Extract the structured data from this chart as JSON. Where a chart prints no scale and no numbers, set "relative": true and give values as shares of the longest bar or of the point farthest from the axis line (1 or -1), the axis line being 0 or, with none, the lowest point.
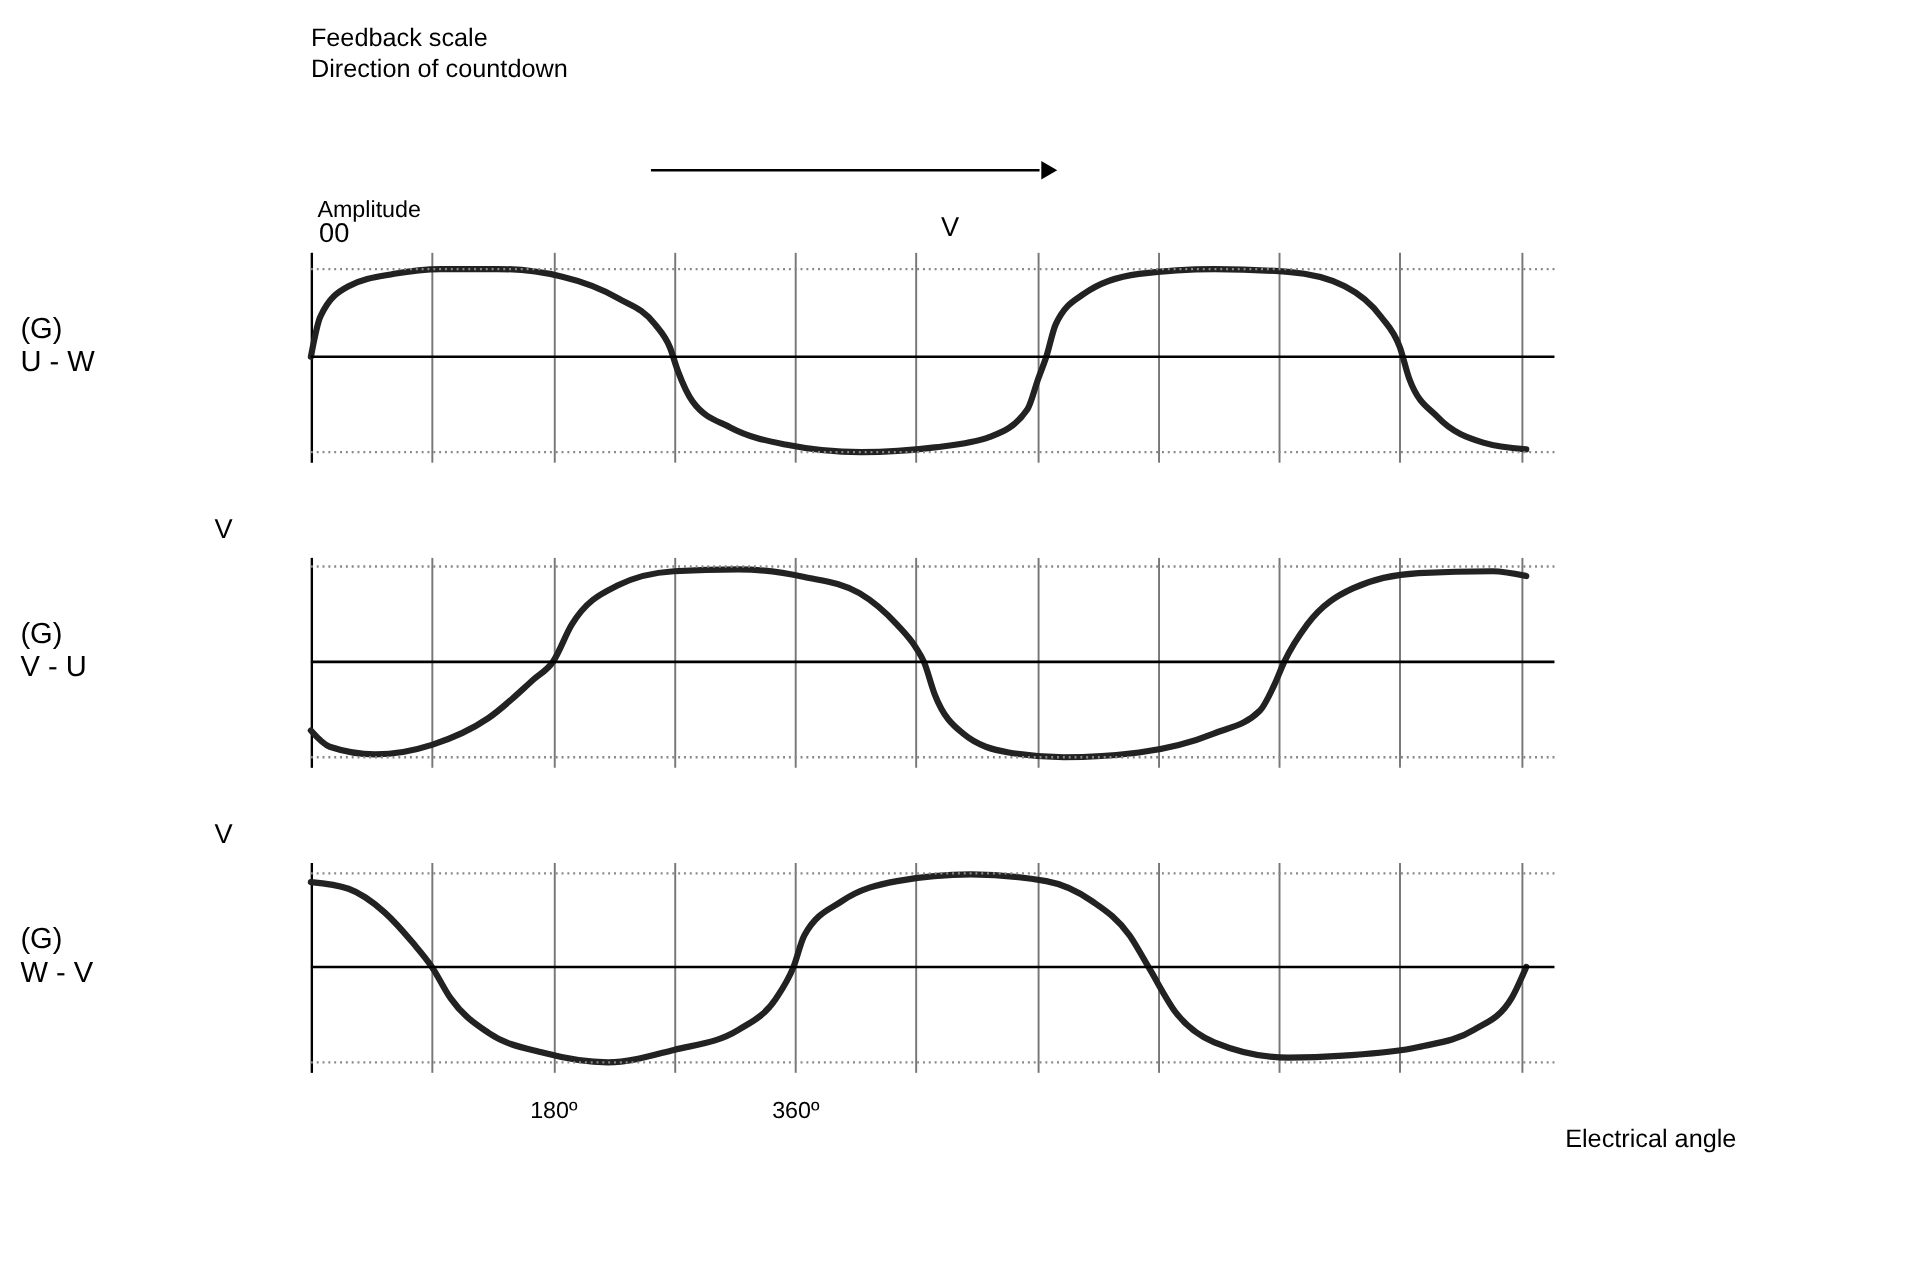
{
  "chart_data": [
    {
      "type": "line",
      "title": "Feedback scale",
      "subtitle": "Direction of countdown",
      "ylabel": "(G)\nU - W",
      "relative": true,
      "grid": "x",
      "tick_labels": false,
      "xlim": [
        0,
        925
      ],
      "xticks": [
        {
          "value": 0,
          "label": null
        },
        {
          "value": 90,
          "label": null
        },
        {
          "value": 180,
          "label": null
        },
        {
          "value": 270,
          "label": null
        },
        {
          "value": 360,
          "label": null
        },
        {
          "value": 450,
          "label": null
        },
        {
          "value": 540,
          "label": null
        },
        {
          "value": 630,
          "label": null
        },
        {
          "value": 720,
          "label": null
        },
        {
          "value": 810,
          "label": null
        },
        {
          "value": 900,
          "label": null
        }
      ],
      "annotations": [
        "Amplitude",
        "00",
        "V"
      ],
      "ref_lines": [
        {
          "axis": "y",
          "value": 0.92,
          "line_style": "dotted",
          "color": "#888888"
        },
        {
          "axis": "y",
          "value": -1,
          "line_style": "dotted",
          "color": "#888888"
        }
      ],
      "x": [
        0,
        7,
        28,
        62,
        97,
        139,
        187,
        229,
        256,
        267,
        273,
        284,
        312,
        353,
        409,
        464,
        505,
        533,
        541,
        547,
        554,
        575,
        616,
        672,
        727,
        769,
        796,
        810,
        817,
        838,
        872,
        904
      ],
      "series": [
        {
          "color": "#222222",
          "values": [
            0,
            0.42,
            0.74,
            0.87,
            0.92,
            0.92,
            0.84,
            0.61,
            0.34,
            0.1,
            -0.15,
            -0.47,
            -0.74,
            -0.92,
            -1,
            -0.95,
            -0.84,
            -0.55,
            -0.23,
            0,
            0.34,
            0.66,
            0.87,
            0.92,
            0.89,
            0.74,
            0.42,
            0.1,
            -0.23,
            -0.63,
            -0.9,
            -0.97
          ]
        }
      ]
    },
    {
      "type": "line",
      "ylabel": "(G)\nV - U",
      "relative": true,
      "grid": "x",
      "tick_labels": false,
      "xlim": [
        0,
        925
      ],
      "xticks": [
        {
          "value": 0,
          "label": null
        },
        {
          "value": 90,
          "label": null
        },
        {
          "value": 180,
          "label": null
        },
        {
          "value": 270,
          "label": null
        },
        {
          "value": 360,
          "label": null
        },
        {
          "value": 450,
          "label": null
        },
        {
          "value": 540,
          "label": null
        },
        {
          "value": 630,
          "label": null
        },
        {
          "value": 720,
          "label": null
        },
        {
          "value": 810,
          "label": null
        },
        {
          "value": 900,
          "label": null
        }
      ],
      "annotations": [
        "V"
      ],
      "ref_lines": [
        {
          "axis": "y",
          "value": 1,
          "line_style": "dotted",
          "color": "#888888"
        },
        {
          "axis": "y",
          "value": -1,
          "line_style": "dotted",
          "color": "#888888"
        }
      ],
      "x": [
        0,
        14,
        48,
        90,
        132,
        166,
        180,
        194,
        228,
        270,
        318,
        367,
        408,
        436,
        450,
        456,
        464,
        485,
        519,
        560,
        616,
        672,
        706,
        716,
        724,
        741,
        775,
        824,
        879,
        904
      ],
      "series": [
        {
          "color": "#222222",
          "values": [
            -0.72,
            -0.89,
            -0.97,
            -0.87,
            -0.59,
            -0.18,
            0,
            0.39,
            0.8,
            0.95,
            0.97,
            0.89,
            0.72,
            0.39,
            0.15,
            0,
            -0.34,
            -0.75,
            -0.95,
            -1,
            -0.95,
            -0.75,
            -0.51,
            -0.26,
            0,
            0.39,
            0.77,
            0.93,
            0.95,
            0.9
          ]
        }
      ]
    },
    {
      "type": "line",
      "ylabel": "(G)\nW - V",
      "xlabel": "Electrical angle",
      "relative": true,
      "grid": "x",
      "tick_labels": "x",
      "xlim": [
        0,
        925
      ],
      "xticks": [
        {
          "value": 0,
          "label": null
        },
        {
          "value": 90,
          "label": null
        },
        {
          "value": 180,
          "label": "180º"
        },
        {
          "value": 270,
          "label": null
        },
        {
          "value": 360,
          "label": "360º"
        },
        {
          "value": 450,
          "label": null
        },
        {
          "value": 540,
          "label": null
        },
        {
          "value": 630,
          "label": null
        },
        {
          "value": 720,
          "label": null
        },
        {
          "value": 810,
          "label": null
        },
        {
          "value": 900,
          "label": null
        }
      ],
      "annotations": [
        "V"
      ],
      "ref_lines": [
        {
          "axis": "y",
          "value": 0.98,
          "line_style": "dotted",
          "color": "#888888"
        },
        {
          "axis": "y",
          "value": -1,
          "line_style": "dotted",
          "color": "#888888"
        }
      ],
      "x": [
        0,
        28,
        55,
        76,
        90,
        104,
        132,
        173,
        221,
        270,
        318,
        346,
        359,
        367,
        395,
        436,
        491,
        547,
        581,
        609,
        623,
        644,
        672,
        727,
        768,
        824,
        865,
        893,
        904
      ],
      "series": [
        {
          "color": "#222222",
          "values": [
            0.89,
            0.82,
            0.57,
            0.25,
            0,
            -0.33,
            -0.69,
            -0.9,
            -1,
            -0.87,
            -0.66,
            -0.33,
            0,
            0.33,
            0.69,
            0.9,
            0.97,
            0.9,
            0.69,
            0.33,
            0,
            -0.49,
            -0.79,
            -0.95,
            -0.93,
            -0.84,
            -0.66,
            -0.33,
            0
          ]
        }
      ]
    }
  ]
}
